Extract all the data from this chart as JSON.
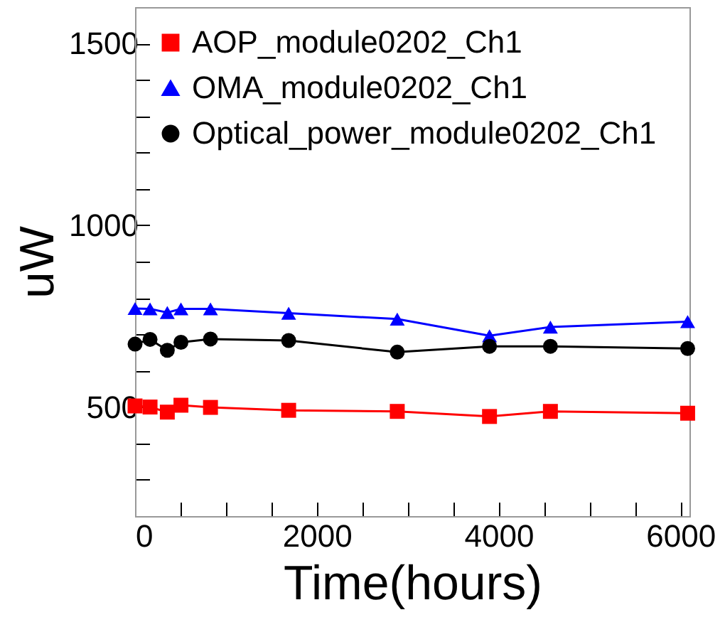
{
  "chart_data": {
    "type": "line",
    "xlabel": "Time(hours)",
    "ylabel": "uW",
    "x": [
      0,
      165,
      355,
      505,
      830,
      1690,
      2885,
      3900,
      4570,
      6080
    ],
    "series": [
      {
        "name": "AOP_module0202_Ch1",
        "color": "#ff0000",
        "marker": "square",
        "values": [
          503,
          500,
          486,
          505,
          499,
          491,
          488,
          474,
          488,
          483
        ]
      },
      {
        "name": "OMA_module0202_Ch1",
        "color": "#0000ff",
        "marker": "triangle",
        "values": [
          771,
          770,
          760,
          770,
          770,
          758,
          742,
          696,
          720,
          735
        ]
      },
      {
        "name": "Optical_power_module0202_Ch1",
        "color": "#000000",
        "marker": "circle",
        "values": [
          673,
          686,
          656,
          678,
          687,
          683,
          651,
          667,
          667,
          661
        ]
      }
    ],
    "xlim": [
      0,
      6100
    ],
    "ylim": [
      200,
      1600
    ],
    "xticks": [
      0,
      {
        "value": 500,
        "label": null
      },
      {
        "value": 1000,
        "label": null
      },
      {
        "value": 1500,
        "label": null
      },
      2000,
      {
        "value": 2500,
        "label": null
      },
      {
        "value": 3000,
        "label": null
      },
      {
        "value": 3500,
        "label": null
      },
      4000,
      {
        "value": 4500,
        "label": null
      },
      {
        "value": 5000,
        "label": null
      },
      {
        "value": 5500,
        "label": null
      },
      6000
    ],
    "yticks": [
      {
        "value": 300,
        "label": null
      },
      {
        "value": 400,
        "label": null
      },
      500,
      {
        "value": 600,
        "label": null
      },
      {
        "value": 700,
        "label": null
      },
      {
        "value": 800,
        "label": null
      },
      {
        "value": 900,
        "label": null
      },
      1000,
      {
        "value": 1100,
        "label": null
      },
      {
        "value": 1200,
        "label": null
      },
      {
        "value": 1300,
        "label": null
      },
      {
        "value": 1400,
        "label": null
      },
      1500
    ],
    "grid": false,
    "legend": "top left",
    "line_style": "solid"
  }
}
